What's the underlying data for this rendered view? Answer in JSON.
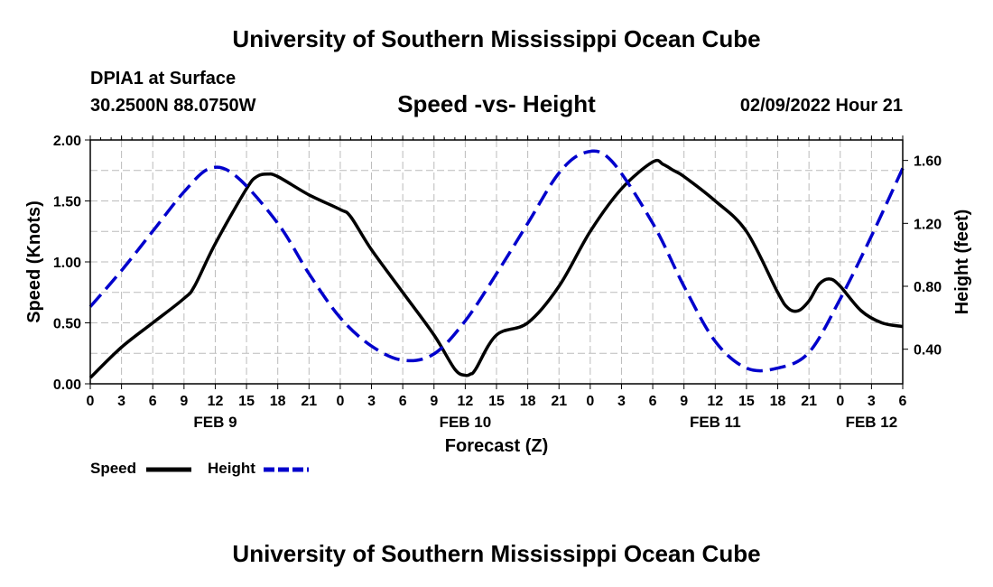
{
  "header": {
    "title": "University of Southern Mississippi Ocean Cube",
    "station": "DPIA1 at Surface",
    "coords": "30.2500N  88.0750W",
    "subtitle": "Speed -vs- Height",
    "datetime": "02/09/2022 Hour 21"
  },
  "footer": {
    "title": "University of Southern Mississippi Ocean Cube"
  },
  "legend": {
    "speed_label": "Speed",
    "height_label": "Height"
  },
  "colors": {
    "speed": "#000000",
    "height": "#0000cc",
    "grid": "#bbbbbb"
  },
  "chart_data": {
    "type": "line",
    "xlabel": "Forecast (Z)",
    "ylabel_left": "Speed (Knots)",
    "ylabel_right": "Height (feet)",
    "x_unit": "hours since FEB 9 00Z",
    "xlim": [
      0,
      78
    ],
    "ylim_left": [
      0,
      2.0
    ],
    "ylim_right": [
      0.18,
      1.73
    ],
    "x_ticks": [
      0,
      3,
      6,
      9,
      12,
      15,
      18,
      21,
      24,
      27,
      30,
      33,
      36,
      39,
      42,
      45,
      48,
      51,
      54,
      57,
      60,
      63,
      66,
      69,
      72,
      75,
      78
    ],
    "x_tick_labels": [
      "0",
      "3",
      "6",
      "9",
      "12",
      "15",
      "18",
      "21",
      "0",
      "3",
      "6",
      "9",
      "12",
      "15",
      "18",
      "21",
      "0",
      "3",
      "6",
      "9",
      "12",
      "15",
      "18",
      "21",
      "0",
      "3",
      "6"
    ],
    "date_labels": [
      {
        "x": 12,
        "label": "FEB 9"
      },
      {
        "x": 36,
        "label": "FEB 10"
      },
      {
        "x": 60,
        "label": "FEB 11"
      },
      {
        "x": 75,
        "label": "FEB 12"
      }
    ],
    "y_ticks_left": [
      0.0,
      0.5,
      1.0,
      1.5,
      2.0
    ],
    "y_tick_labels_left": [
      "0.00",
      "0.50",
      "1.00",
      "1.50",
      "2.00"
    ],
    "y_ticks_right": [
      0.4,
      0.8,
      1.2,
      1.6
    ],
    "y_tick_labels_right": [
      "0.40",
      "0.80",
      "1.20",
      "1.60"
    ],
    "series": [
      {
        "name": "Speed",
        "axis": "left",
        "style": "solid",
        "x": [
          0,
          3,
          6,
          9,
          10,
          12,
          15,
          16,
          17,
          18,
          21,
          24,
          25,
          27,
          30,
          33,
          35,
          36,
          36.5,
          37,
          39,
          42,
          45,
          48,
          51,
          54,
          55,
          56,
          57,
          60,
          63,
          66,
          67,
          68,
          69,
          70,
          71,
          72,
          74,
          76,
          78
        ],
        "values": [
          0.05,
          0.3,
          0.5,
          0.7,
          0.8,
          1.15,
          1.6,
          1.7,
          1.72,
          1.7,
          1.55,
          1.43,
          1.37,
          1.1,
          0.75,
          0.4,
          0.12,
          0.07,
          0.08,
          0.12,
          0.4,
          0.5,
          0.8,
          1.25,
          1.6,
          1.82,
          1.8,
          1.75,
          1.7,
          1.5,
          1.25,
          0.75,
          0.62,
          0.6,
          0.68,
          0.82,
          0.86,
          0.8,
          0.6,
          0.5,
          0.47
        ]
      },
      {
        "name": "Height",
        "axis": "right",
        "style": "dashed",
        "x": [
          0,
          3,
          6,
          9,
          11.5,
          14,
          18,
          21,
          24,
          27,
          30,
          33,
          36,
          39,
          42,
          45,
          47.5,
          50,
          54,
          57,
          60,
          63,
          66,
          69,
          72,
          75,
          78
        ],
        "values": [
          0.67,
          0.9,
          1.15,
          1.4,
          1.55,
          1.5,
          1.2,
          0.88,
          0.6,
          0.42,
          0.33,
          0.37,
          0.58,
          0.88,
          1.2,
          1.52,
          1.65,
          1.6,
          1.2,
          0.8,
          0.45,
          0.28,
          0.28,
          0.38,
          0.72,
          1.12,
          1.55
        ]
      }
    ]
  }
}
